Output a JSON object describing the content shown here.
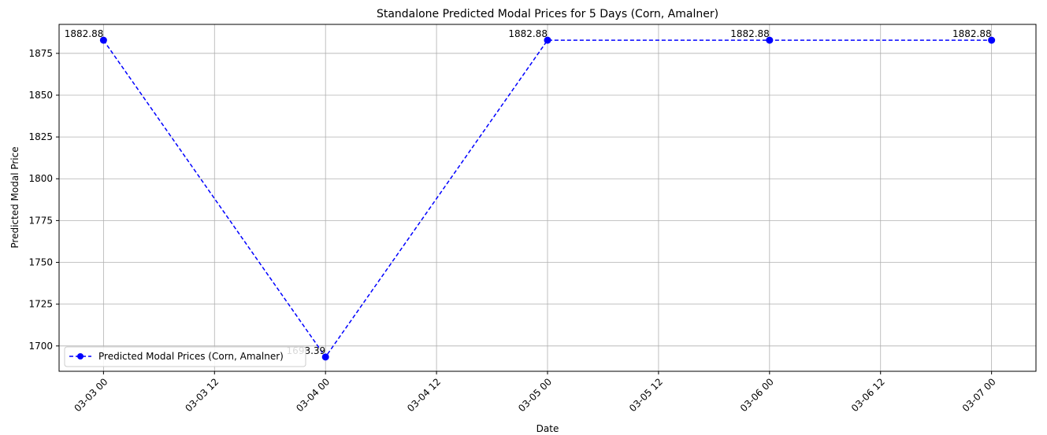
{
  "chart_data": {
    "type": "line",
    "title": "Standalone Predicted Modal Prices for 5 Days (Corn, Amalner)",
    "xlabel": "Date",
    "ylabel": "Predicted Modal Price",
    "x": [
      "03-03 00",
      "03-04 00",
      "03-05 00",
      "03-06 00",
      "03-07 00"
    ],
    "x_days": [
      0,
      1,
      2,
      3,
      4
    ],
    "x_ticks": [
      "03-03 00",
      "03-03 12",
      "03-04 00",
      "03-04 12",
      "03-05 00",
      "03-05 12",
      "03-06 00",
      "03-06 12",
      "03-07 00"
    ],
    "x_tick_days": [
      0,
      0.5,
      1,
      1.5,
      2,
      2.5,
      3,
      3.5,
      4
    ],
    "xlim": [
      -0.2,
      4.2
    ],
    "y_ticks": [
      1700,
      1725,
      1750,
      1775,
      1800,
      1825,
      1850,
      1875
    ],
    "ylim": [
      1684.85,
      1892.33
    ],
    "series": [
      {
        "name": "Predicted Modal Prices (Corn, Amalner)",
        "values": [
          1882.88,
          1693.39,
          1882.88,
          1882.88,
          1882.88
        ],
        "labels": [
          "1882.88",
          "1693.39",
          "1882.88",
          "1882.88",
          "1882.88"
        ],
        "color": "#0000ff",
        "linestyle": "dashed",
        "marker": "circle"
      }
    ],
    "grid": true,
    "legend_position": "lower-left"
  }
}
